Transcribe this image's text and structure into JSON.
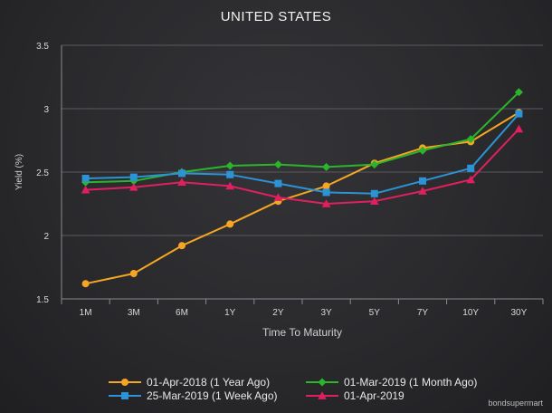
{
  "chart_data": {
    "type": "line",
    "title": "UNITED STATES",
    "xlabel": "Time To Maturity",
    "ylabel": "Yield (%)",
    "categories": [
      "1M",
      "3M",
      "6M",
      "1Y",
      "2Y",
      "3Y",
      "5Y",
      "7Y",
      "10Y",
      "30Y"
    ],
    "ylim": [
      1.5,
      3.5
    ],
    "yticks": [
      "1.5",
      "2",
      "2.5",
      "3",
      "3.5"
    ],
    "grid": true,
    "legend_position": "bottom",
    "credit": "bondsupermart",
    "series": [
      {
        "name": "01-Apr-2018 (1 Year Ago)",
        "color": "#f5a623",
        "marker": "circle",
        "values": [
          1.62,
          1.7,
          1.92,
          2.09,
          2.27,
          2.39,
          2.57,
          2.69,
          2.74,
          2.97
        ]
      },
      {
        "name": "01-Mar-2019 (1 Month Ago)",
        "color": "#2bb52b",
        "marker": "diamond",
        "values": [
          2.42,
          2.43,
          2.5,
          2.55,
          2.56,
          2.54,
          2.56,
          2.67,
          2.76,
          3.13
        ]
      },
      {
        "name": "25-Mar-2019 (1 Week Ago)",
        "color": "#2b93d6",
        "marker": "square",
        "values": [
          2.45,
          2.46,
          2.49,
          2.48,
          2.41,
          2.34,
          2.33,
          2.43,
          2.53,
          2.96
        ]
      },
      {
        "name": "01-Apr-2019",
        "color": "#e0205e",
        "marker": "triangle",
        "values": [
          2.36,
          2.38,
          2.42,
          2.39,
          2.3,
          2.25,
          2.27,
          2.35,
          2.44,
          2.84
        ]
      }
    ]
  }
}
